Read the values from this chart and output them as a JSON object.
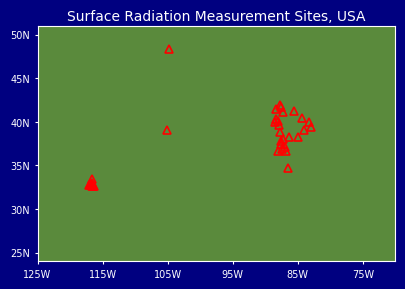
{
  "title": "Surface Radiation Measurement Sites, USA",
  "background_color": "#000080",
  "map_border_color": "#ffffff",
  "title_color": "#ffffff",
  "title_fontsize": 10,
  "lon_min": -125,
  "lon_max": -70,
  "lat_min": 24,
  "lat_max": 51,
  "xticks": [
    -125,
    -115,
    -105,
    -95,
    -85,
    -75
  ],
  "yticks": [
    25,
    30,
    35,
    40,
    45,
    50
  ],
  "xlabels": [
    "125W",
    "115W",
    "105W",
    "95W",
    "85W",
    "75W"
  ],
  "ylabels": [
    "25N",
    "30N",
    "35N",
    "40N",
    "45N",
    "50N"
  ],
  "grid_color": "#ffffff",
  "grid_linestyle": "dotted",
  "grid_linewidth": 0.5,
  "marker_color": "red",
  "marker_size": 6,
  "sites": [
    [
      -104.8,
      48.3
    ],
    [
      -105.1,
      39.1
    ],
    [
      -116.8,
      32.8
    ],
    [
      -116.6,
      32.7
    ],
    [
      -116.7,
      32.6
    ],
    [
      -116.5,
      32.6
    ],
    [
      -116.9,
      32.9
    ],
    [
      -117.1,
      32.7
    ],
    [
      -116.3,
      32.6
    ],
    [
      -116.4,
      32.7
    ],
    [
      -116.6,
      33.0
    ],
    [
      -116.7,
      33.4
    ],
    [
      -86.8,
      36.6
    ],
    [
      -87.4,
      36.9
    ],
    [
      -87.0,
      37.1
    ],
    [
      -87.2,
      38.0
    ],
    [
      -87.6,
      41.7
    ],
    [
      -87.8,
      41.9
    ],
    [
      -88.3,
      41.5
    ],
    [
      -88.0,
      40.1
    ],
    [
      -88.4,
      40.3
    ],
    [
      -87.9,
      39.6
    ],
    [
      -87.7,
      38.8
    ],
    [
      -87.5,
      37.8
    ],
    [
      -87.5,
      37.4
    ],
    [
      -88.1,
      36.6
    ],
    [
      -86.5,
      34.7
    ],
    [
      -85.5,
      41.2
    ],
    [
      -84.3,
      40.4
    ],
    [
      -83.2,
      40.0
    ],
    [
      -83.0,
      39.4
    ],
    [
      -84.0,
      39.0
    ],
    [
      -85.0,
      38.2
    ],
    [
      -86.3,
      38.2
    ],
    [
      -87.3,
      41.1
    ],
    [
      -88.5,
      40.0
    ]
  ]
}
